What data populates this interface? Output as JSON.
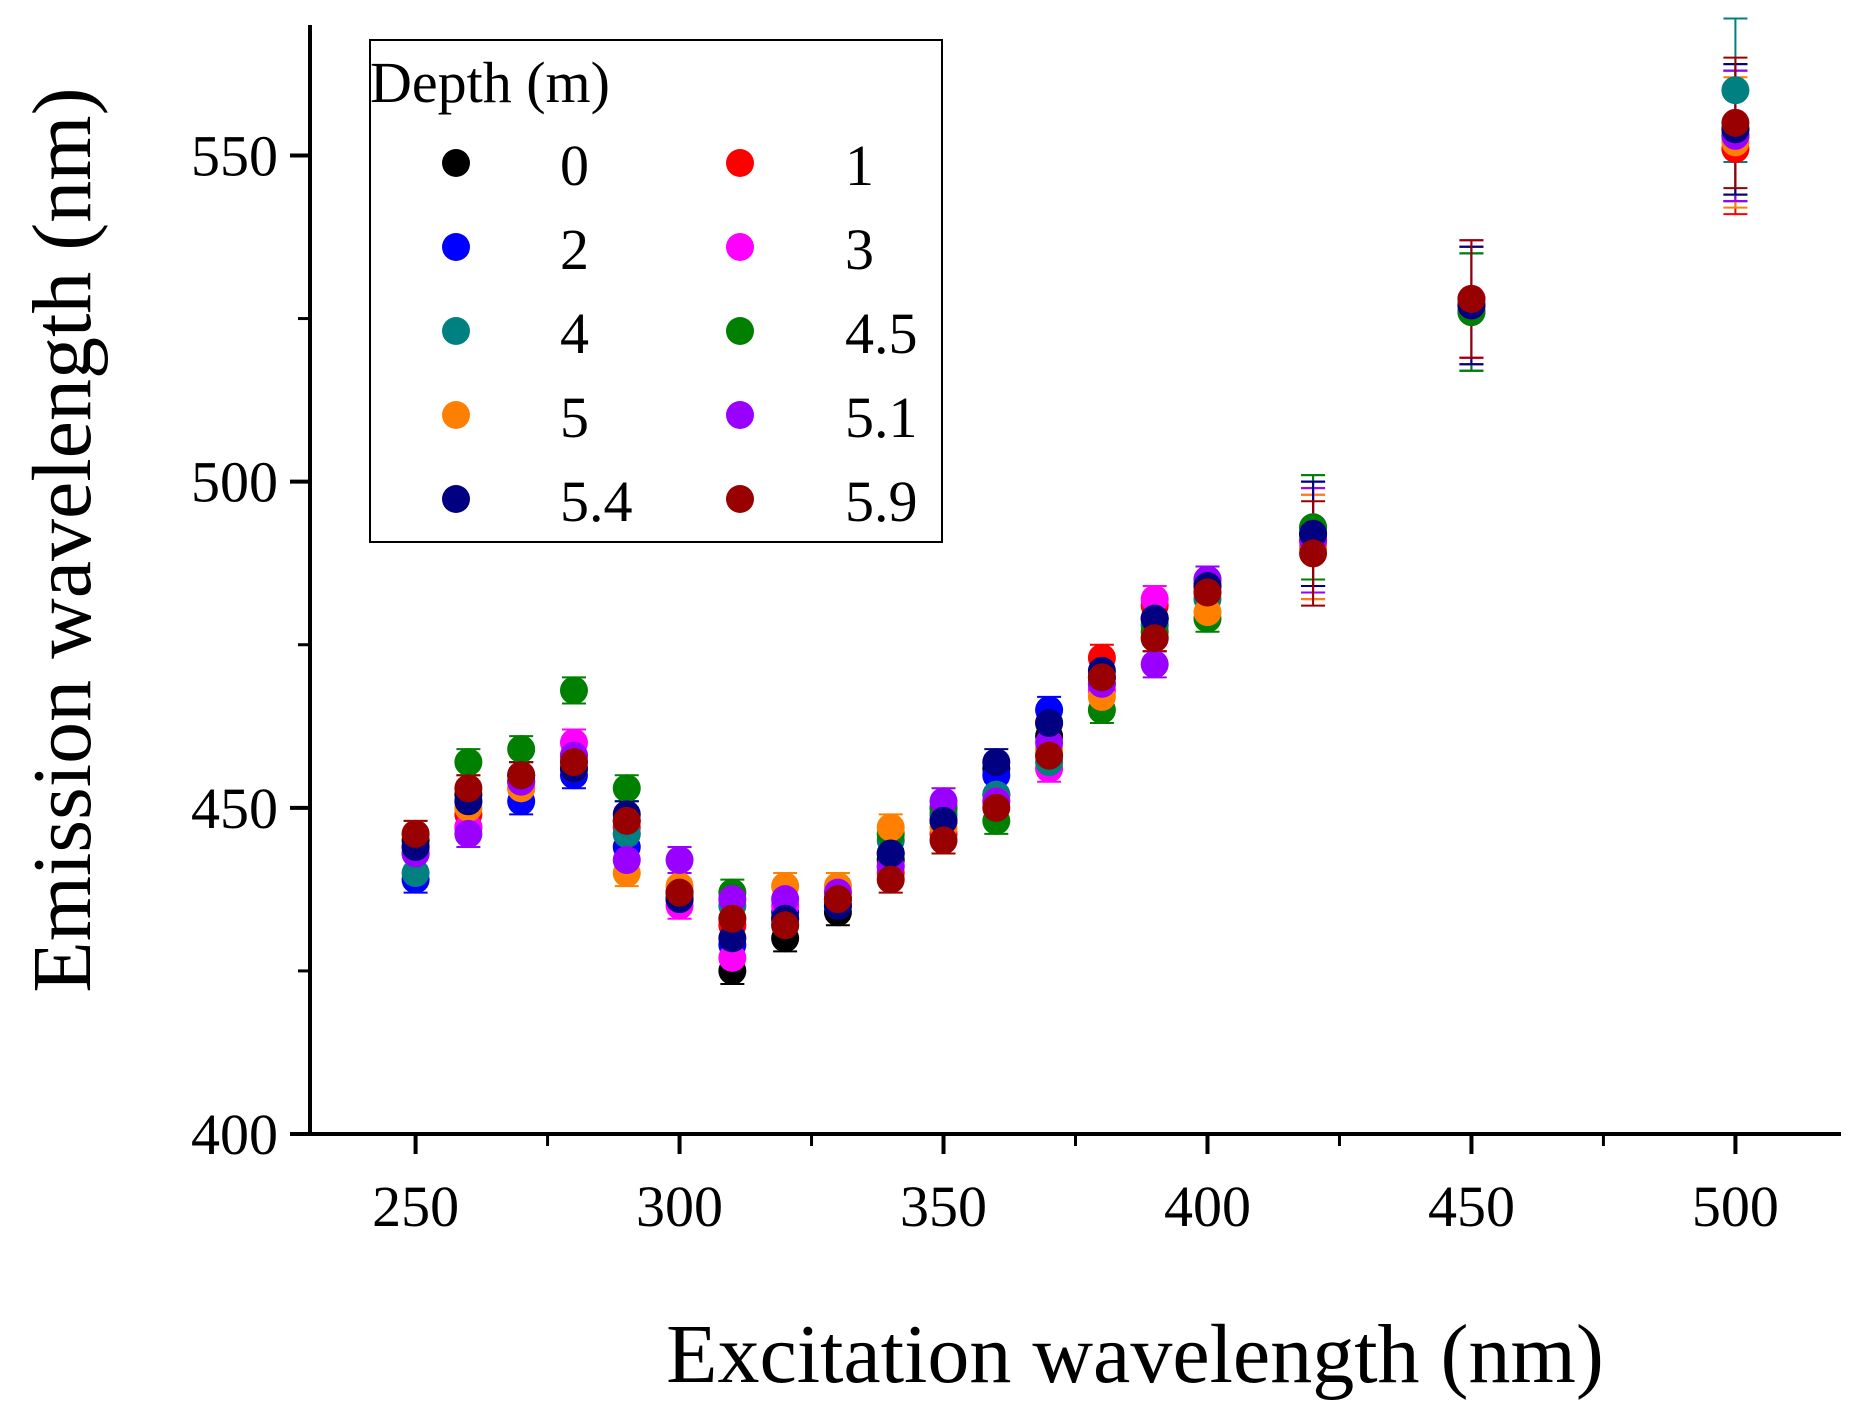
{
  "chart_data": {
    "type": "scatter",
    "xlabel": "Excitation wavelength (nm)",
    "ylabel": "Emission wavelength (nm)",
    "xlim": [
      230,
      520
    ],
    "ylim": [
      400,
      570
    ],
    "xticks": [
      250,
      300,
      350,
      400,
      450,
      500
    ],
    "yticks": [
      400,
      450,
      500,
      550
    ],
    "legend": {
      "title": "Depth (m)",
      "position": "top-left",
      "columns": 2
    },
    "x": [
      250,
      260,
      270,
      280,
      290,
      300,
      310,
      320,
      330,
      340,
      350,
      360,
      370,
      380,
      390,
      400,
      420,
      450,
      500
    ],
    "series": [
      {
        "name": "0",
        "color": "#000000",
        "values": [
          445,
          452,
          454,
          456,
          448,
          437,
          425,
          430,
          434,
          442,
          448,
          456,
          461,
          470,
          479,
          484,
          492,
          527,
          554
        ],
        "error": [
          2,
          2,
          2,
          2,
          2,
          2,
          2,
          2,
          2,
          2,
          2,
          2,
          2,
          2,
          2,
          2,
          8,
          9,
          10
        ]
      },
      {
        "name": "1",
        "color": "#ff0000",
        "values": [
          444,
          449,
          454,
          458,
          447,
          436,
          432,
          433,
          436,
          440,
          446,
          452,
          463,
          473,
          481,
          484,
          491,
          528,
          551
        ],
        "error": [
          2,
          2,
          2,
          2,
          2,
          2,
          2,
          2,
          2,
          2,
          2,
          2,
          2,
          2,
          2,
          2,
          8,
          9,
          10
        ]
      },
      {
        "name": "2",
        "color": "#0000ff",
        "values": [
          439,
          447,
          451,
          455,
          444,
          436,
          429,
          434,
          435,
          443,
          450,
          455,
          465,
          470,
          479,
          485,
          492,
          526,
          553
        ],
        "error": [
          2,
          2,
          2,
          2,
          2,
          2,
          2,
          2,
          2,
          2,
          2,
          2,
          2,
          2,
          2,
          2,
          8,
          9,
          10
        ]
      },
      {
        "name": "3",
        "color": "#ff00ff",
        "values": [
          443,
          447,
          453,
          460,
          446,
          435,
          427,
          435,
          436,
          441,
          449,
          452,
          456,
          468,
          482,
          483,
          490,
          528,
          553
        ],
        "error": [
          2,
          2,
          2,
          2,
          2,
          2,
          2,
          2,
          2,
          2,
          2,
          2,
          2,
          2,
          2,
          2,
          8,
          9,
          10
        ]
      },
      {
        "name": "4",
        "color": "#008080",
        "values": [
          440,
          451,
          455,
          457,
          446,
          436,
          435,
          433,
          435,
          445,
          449,
          452,
          457,
          469,
          478,
          482,
          493,
          526,
          560
        ],
        "error": [
          2,
          2,
          2,
          2,
          2,
          2,
          2,
          2,
          2,
          2,
          2,
          2,
          2,
          2,
          2,
          2,
          8,
          9,
          11
        ]
      },
      {
        "name": "4.5",
        "color": "#008000",
        "values": [
          443,
          457,
          459,
          468,
          453,
          437,
          437,
          432,
          436,
          446,
          450,
          448,
          458,
          465,
          477,
          479,
          493,
          526,
          553
        ],
        "error": [
          2,
          2,
          2,
          2,
          2,
          2,
          2,
          2,
          2,
          2,
          2,
          2,
          2,
          2,
          2,
          2,
          8,
          9,
          10
        ]
      },
      {
        "name": "5",
        "color": "#ff8000",
        "values": [
          446,
          450,
          453,
          456,
          440,
          438,
          433,
          438,
          438,
          447,
          447,
          451,
          459,
          467,
          476,
          480,
          490,
          527,
          552
        ],
        "error": [
          2,
          2,
          2,
          2,
          2,
          2,
          2,
          2,
          2,
          2,
          2,
          2,
          2,
          2,
          2,
          2,
          8,
          9,
          10
        ]
      },
      {
        "name": "5.1",
        "color": "#9900ff",
        "values": [
          443,
          446,
          454,
          458,
          442,
          442,
          436,
          436,
          437,
          441,
          451,
          451,
          460,
          469,
          472,
          485,
          491,
          527,
          553
        ],
        "error": [
          2,
          2,
          2,
          2,
          2,
          2,
          2,
          2,
          2,
          2,
          2,
          2,
          2,
          2,
          2,
          2,
          8,
          9,
          10
        ]
      },
      {
        "name": "5.4",
        "color": "#000080",
        "values": [
          444,
          451,
          455,
          456,
          449,
          436,
          430,
          433,
          435,
          443,
          448,
          457,
          463,
          471,
          479,
          484,
          492,
          527,
          554
        ],
        "error": [
          2,
          2,
          2,
          2,
          2,
          2,
          2,
          2,
          2,
          2,
          2,
          2,
          2,
          2,
          2,
          2,
          8,
          9,
          10
        ]
      },
      {
        "name": "5.9",
        "color": "#990000",
        "values": [
          446,
          453,
          455,
          457,
          448,
          437,
          433,
          432,
          436,
          439,
          445,
          450,
          458,
          470,
          476,
          483,
          489,
          528,
          555
        ],
        "error": [
          2,
          2,
          2,
          2,
          2,
          2,
          2,
          2,
          2,
          2,
          2,
          2,
          2,
          2,
          2,
          2,
          8,
          9,
          10
        ]
      }
    ]
  }
}
